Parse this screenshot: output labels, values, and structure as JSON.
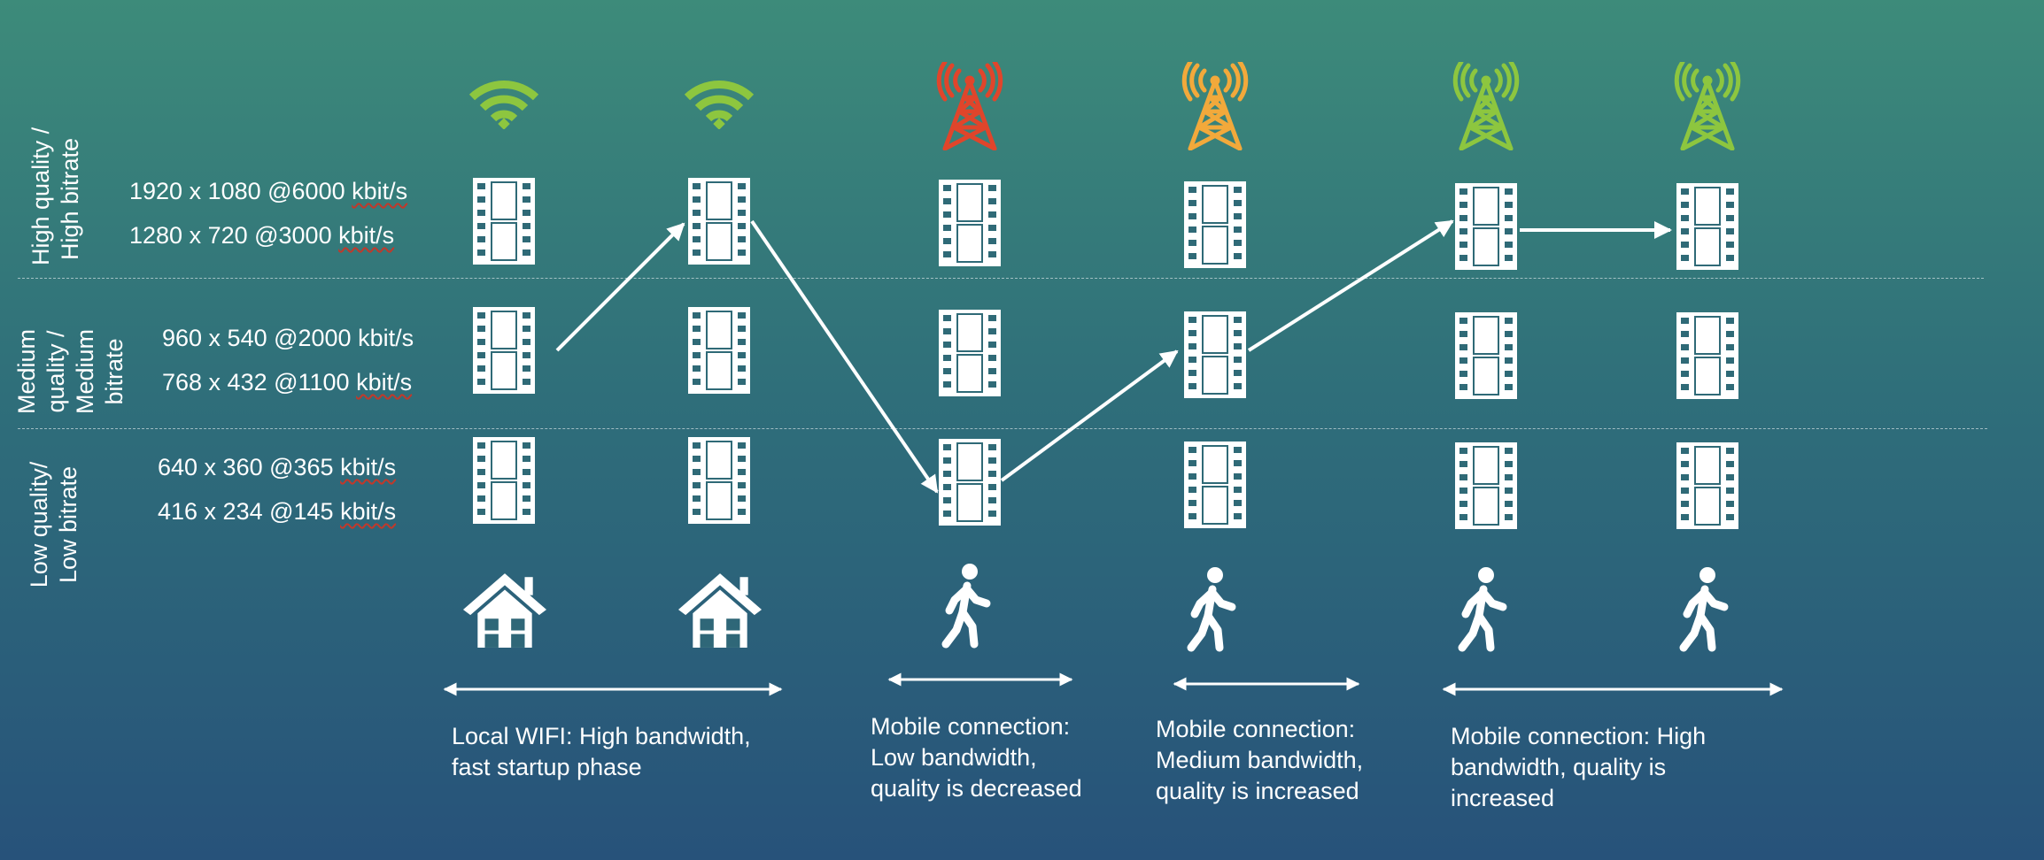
{
  "colors": {
    "wifi": "#8dc63f",
    "tower_red": "#e0452b",
    "tower_orange": "#f2a93b",
    "tower_green": "#8dc63f",
    "film_fill": "#ffffff",
    "film_hole": "#2f6a77"
  },
  "quality_bands": {
    "high": [
      "High quality /",
      "High bitrate"
    ],
    "medium": [
      "Medium",
      "quality /",
      "Medium",
      "bitrate"
    ],
    "low": [
      "Low quality/",
      "Low bitrate"
    ]
  },
  "bitrate_ladder": [
    {
      "text": "1920 x 1080 @6000 ",
      "unit": "kbit/s"
    },
    {
      "text": "1280 x 720 @3000 ",
      "unit": "kbit/s"
    },
    {
      "text": "960 x 540 @2000 kbit/s",
      "unit": ""
    },
    {
      "text": "768 x 432 @1100 ",
      "unit": "kbit/s"
    },
    {
      "text": "640 x 360 @365 ",
      "unit": "kbit/s"
    },
    {
      "text": "416 x 234 @145 ",
      "unit": "kbit/s"
    }
  ],
  "columns": [
    {
      "network_icon": "wifi-icon",
      "signal_color": "wifi",
      "context_icon": "house-icon",
      "selected_quality": "medium→high"
    },
    {
      "network_icon": "wifi-icon",
      "signal_color": "wifi",
      "context_icon": "house-icon",
      "selected_quality": "high"
    },
    {
      "network_icon": "cell-tower-icon",
      "signal_color": "tower_red",
      "context_icon": "walking-person-icon",
      "selected_quality": "low"
    },
    {
      "network_icon": "cell-tower-icon",
      "signal_color": "tower_orange",
      "context_icon": "walking-person-icon",
      "selected_quality": "medium"
    },
    {
      "network_icon": "cell-tower-icon",
      "signal_color": "tower_green",
      "context_icon": "walking-person-icon",
      "selected_quality": "high"
    },
    {
      "network_icon": "cell-tower-icon",
      "signal_color": "tower_green",
      "context_icon": "walking-person-icon",
      "selected_quality": "high"
    }
  ],
  "phases": [
    {
      "lines": [
        "Local WIFI: High bandwidth,",
        "fast startup phase"
      ]
    },
    {
      "lines": [
        "Mobile connection:",
        "Low bandwidth,",
        "quality is decreased"
      ]
    },
    {
      "lines": [
        "Mobile connection:",
        "Medium bandwidth,",
        "quality is increased"
      ]
    },
    {
      "lines": [
        "Mobile connection: High",
        "bandwidth, quality is",
        "increased"
      ]
    }
  ]
}
